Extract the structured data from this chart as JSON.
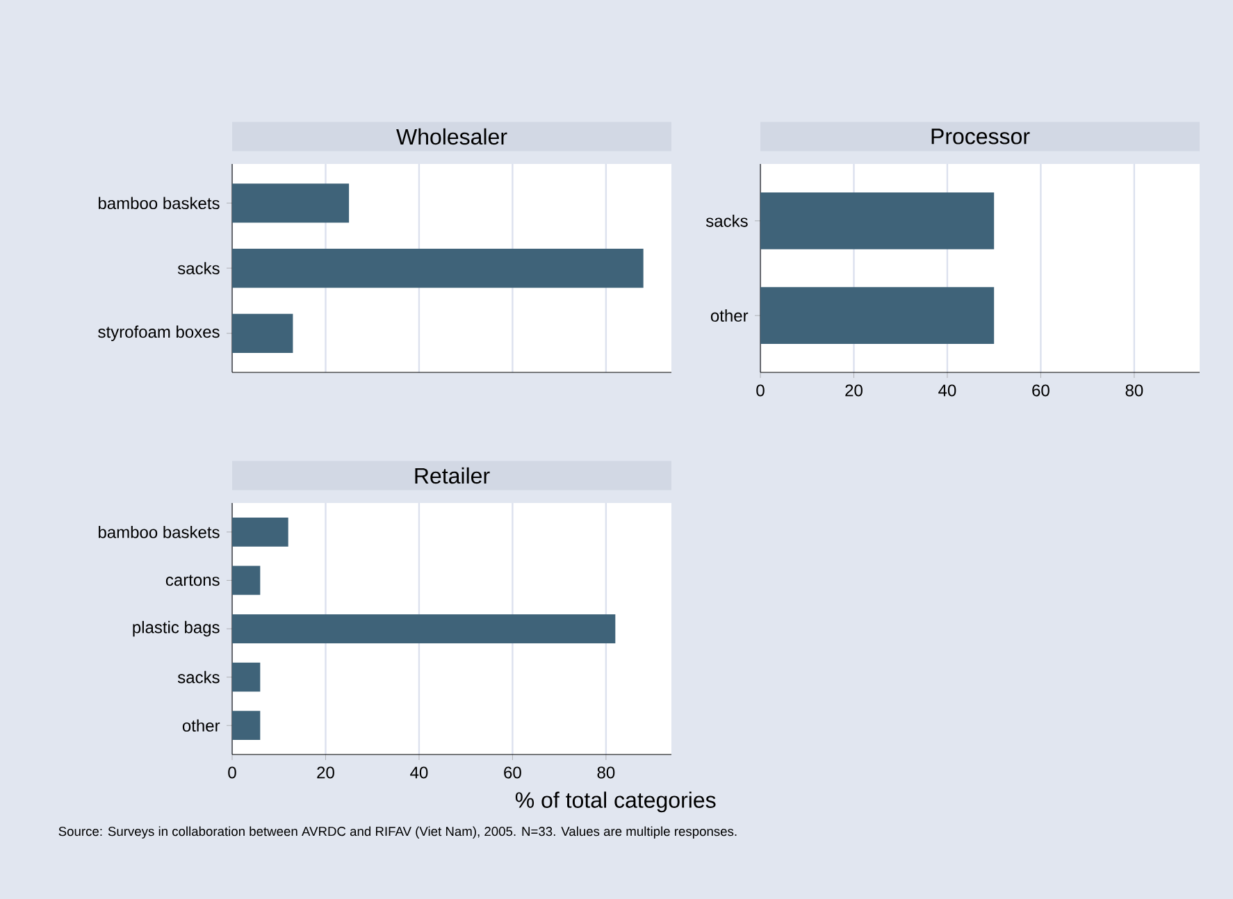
{
  "chart_data": [
    {
      "type": "bar",
      "orientation": "horizontal",
      "title": "Wholesaler",
      "categories": [
        "bamboo baskets",
        "sacks",
        "styrofoam boxes"
      ],
      "values": [
        25,
        88,
        13
      ],
      "color": "#3f6379",
      "xlim": [
        0,
        94
      ],
      "xticks": [
        0,
        20,
        40,
        60,
        80
      ],
      "grid": "x",
      "tick_labels": "y"
    },
    {
      "type": "bar",
      "orientation": "horizontal",
      "title": "Processor",
      "categories": [
        "sacks",
        "other"
      ],
      "values": [
        50,
        50
      ],
      "color": "#3f6379",
      "xlim": [
        0,
        94
      ],
      "xticks": [
        0,
        20,
        40,
        60,
        80
      ],
      "grid": "x"
    },
    {
      "type": "bar",
      "orientation": "horizontal",
      "title": "Retailer",
      "categories": [
        "bamboo baskets",
        "cartons",
        "plastic bags",
        "sacks",
        "other"
      ],
      "values": [
        12,
        6,
        82,
        6,
        6
      ],
      "color": "#3f6379",
      "xlim": [
        0,
        94
      ],
      "xticks": [
        0,
        20,
        40,
        60,
        80
      ],
      "grid": "x",
      "xlabel": "% of total categories",
      "annotations": [
        "Source: Surveys in collaboration between AVRDC and RIFAV (Viet Nam), 2005. N=33. Values are multiple responses."
      ]
    }
  ]
}
